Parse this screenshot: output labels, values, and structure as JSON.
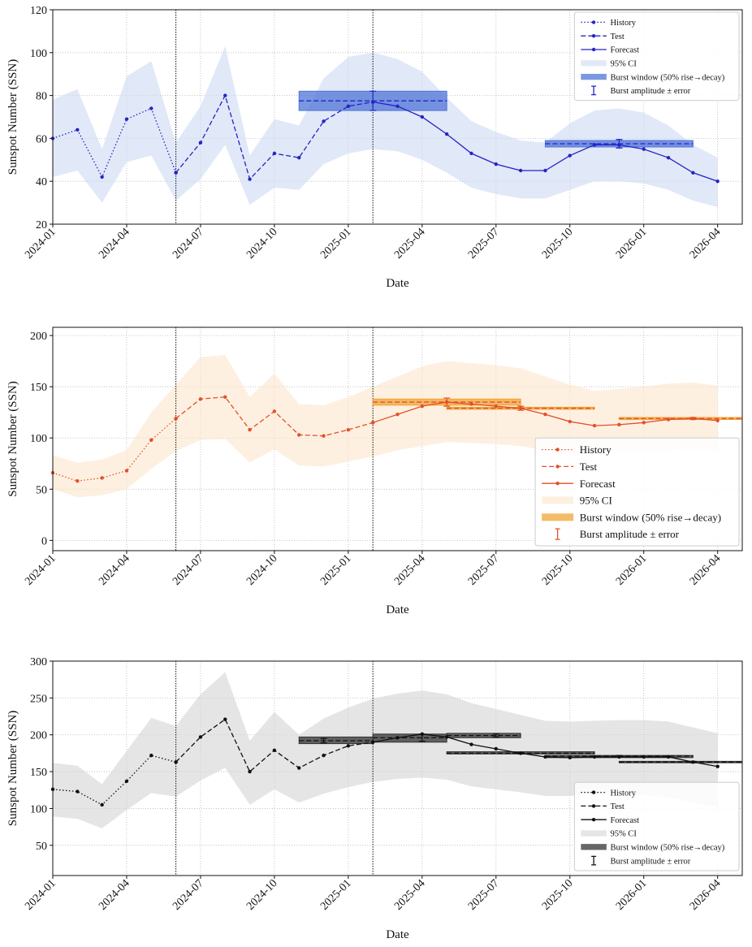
{
  "chart_data": [
    {
      "type": "line",
      "x": [
        "2024-01",
        "2024-02",
        "2024-03",
        "2024-04",
        "2024-05",
        "2024-06",
        "2024-07",
        "2024-08",
        "2024-09",
        "2024-10",
        "2024-11",
        "2024-12",
        "2025-01",
        "2025-02",
        "2025-03",
        "2025-04",
        "2025-05",
        "2025-06",
        "2025-07",
        "2025-08",
        "2025-09",
        "2025-10",
        "2025-11",
        "2025-12",
        "2026-01",
        "2026-02",
        "2026-03",
        "2026-04"
      ],
      "xlim": [
        "2024-01",
        "2026-05"
      ],
      "xticks": [
        "2024-01",
        "2024-04",
        "2024-07",
        "2024-10",
        "2025-01",
        "2025-04",
        "2025-07",
        "2025-10",
        "2026-01",
        "2026-04"
      ],
      "ylim": [
        20,
        120
      ],
      "yticks": [
        20,
        40,
        60,
        80,
        100,
        120
      ],
      "xlabel": "Date",
      "ylabel": "Sunspot Number (SSN)",
      "grid": true,
      "legend": "upper right",
      "vlines": [
        "2024-06",
        "2025-02"
      ],
      "series": [
        {
          "name": "History",
          "color": "#2424c4",
          "linestyle": "dotted",
          "values": [
            60,
            64,
            42,
            69,
            74,
            44,
            null,
            null,
            null,
            null,
            null,
            null,
            null,
            null,
            null,
            null,
            null,
            null,
            null,
            null,
            null,
            null,
            null,
            null,
            null,
            null,
            null,
            null
          ]
        },
        {
          "name": "Test",
          "color": "#2424c4",
          "linestyle": "dashed",
          "values": [
            null,
            null,
            null,
            null,
            null,
            44,
            58,
            80,
            41,
            53,
            51,
            68,
            75,
            77,
            null,
            null,
            null,
            null,
            null,
            null,
            null,
            null,
            null,
            null,
            null,
            null,
            null,
            null
          ]
        },
        {
          "name": "Forecast",
          "color": "#2424c4",
          "linestyle": "solid",
          "values": [
            null,
            null,
            null,
            null,
            null,
            null,
            null,
            null,
            null,
            null,
            null,
            null,
            null,
            77,
            75,
            70,
            62,
            53,
            48,
            45,
            45,
            52,
            57,
            57,
            55,
            51,
            44,
            40
          ]
        }
      ],
      "ci": {
        "name": "95% CI",
        "color": "#cdd8f3",
        "upper": [
          78,
          83,
          55,
          89,
          96,
          58,
          75,
          103,
          52,
          69,
          66,
          88,
          98,
          100,
          97,
          91,
          79,
          68,
          63,
          59,
          58,
          67,
          73,
          74,
          72,
          66,
          57,
          51
        ],
        "lower": [
          42,
          45,
          30,
          49,
          52,
          31,
          41,
          57,
          29,
          37,
          36,
          48,
          53,
          55,
          54,
          50,
          44,
          37,
          34,
          32,
          32,
          36,
          40,
          40,
          39,
          36,
          31,
          28
        ]
      },
      "bursts": {
        "window_label": "Burst window (50% rise→decay)",
        "amplitude_label": "Burst amplitude ± error",
        "color": "#4f74d8",
        "windows": [
          {
            "start": "2024-11",
            "end": "2025-05",
            "low": 73,
            "high": 82,
            "peak": "2025-02",
            "amplitude": 77.5,
            "error": 4.5
          },
          {
            "start": "2025-09",
            "end": "2026-03",
            "low": 56,
            "high": 59,
            "peak": "2025-12",
            "amplitude": 57.5,
            "error": 2
          }
        ]
      }
    },
    {
      "type": "line",
      "x": [
        "2024-01",
        "2024-02",
        "2024-03",
        "2024-04",
        "2024-05",
        "2024-06",
        "2024-07",
        "2024-08",
        "2024-09",
        "2024-10",
        "2024-11",
        "2024-12",
        "2025-01",
        "2025-02",
        "2025-03",
        "2025-04",
        "2025-05",
        "2025-06",
        "2025-07",
        "2025-08",
        "2025-09",
        "2025-10",
        "2025-11",
        "2025-12",
        "2026-01",
        "2026-02",
        "2026-03",
        "2026-04"
      ],
      "xlim": [
        "2024-01",
        "2026-05"
      ],
      "xticks": [
        "2024-01",
        "2024-04",
        "2024-07",
        "2024-10",
        "2025-01",
        "2025-04",
        "2025-07",
        "2025-10",
        "2026-01",
        "2026-04"
      ],
      "ylim": [
        -10,
        208
      ],
      "yticks": [
        0,
        50,
        100,
        150,
        200
      ],
      "xlabel": "Date",
      "ylabel": "Sunspot Number (SSN)",
      "grid": true,
      "legend": "lower right",
      "vlines": [
        "2024-06",
        "2025-02"
      ],
      "series": [
        {
          "name": "History",
          "color": "#e2502a",
          "linestyle": "dotted",
          "values": [
            66,
            58,
            61,
            68,
            98,
            119,
            null,
            null,
            null,
            null,
            null,
            null,
            null,
            null,
            null,
            null,
            null,
            null,
            null,
            null,
            null,
            null,
            null,
            null,
            null,
            null,
            null,
            null
          ]
        },
        {
          "name": "Test",
          "color": "#e2502a",
          "linestyle": "dashed",
          "values": [
            null,
            null,
            null,
            null,
            null,
            119,
            138,
            140,
            108,
            126,
            103,
            102,
            108,
            115,
            null,
            null,
            null,
            null,
            null,
            null,
            null,
            null,
            null,
            null,
            null,
            null,
            null,
            null
          ]
        },
        {
          "name": "Forecast",
          "color": "#e2502a",
          "linestyle": "solid",
          "values": [
            null,
            null,
            null,
            null,
            null,
            null,
            null,
            null,
            null,
            null,
            null,
            null,
            null,
            115,
            123,
            131,
            135,
            133,
            131,
            129,
            123,
            116,
            112,
            113,
            115,
            118,
            119,
            117
          ]
        }
      ],
      "ci": {
        "name": "95% CI",
        "color": "#fde6cc",
        "upper": [
          83,
          76,
          79,
          88,
          125,
          152,
          179,
          181,
          140,
          163,
          133,
          132,
          140,
          150,
          160,
          170,
          175,
          173,
          171,
          168,
          160,
          152,
          146,
          148,
          150,
          153,
          154,
          151
        ],
        "lower": [
          50,
          42,
          44,
          50,
          70,
          87,
          98,
          99,
          76,
          89,
          73,
          72,
          77,
          82,
          88,
          92,
          96,
          95,
          94,
          92,
          88,
          84,
          84,
          85,
          87,
          88,
          89,
          88
        ]
      },
      "bursts": {
        "window_label": "Burst window (50% rise→decay)",
        "amplitude_label": "Burst amplitude ± error",
        "color": "#f0a437",
        "windows": [
          {
            "start": "2025-02",
            "end": "2025-08",
            "low": 132,
            "high": 138,
            "peak": "2025-05",
            "amplitude": 135,
            "error": 4
          },
          {
            "start": "2025-05",
            "end": "2025-11",
            "low": 128,
            "high": 130,
            "peak": "2025-08",
            "amplitude": 129,
            "error": 2
          },
          {
            "start": "2025-12",
            "end": "2026-05",
            "low": 118,
            "high": 120,
            "peak": "2026-03",
            "amplitude": 119,
            "error": 1
          }
        ]
      }
    },
    {
      "type": "line",
      "x": [
        "2024-01",
        "2024-02",
        "2024-03",
        "2024-04",
        "2024-05",
        "2024-06",
        "2024-07",
        "2024-08",
        "2024-09",
        "2024-10",
        "2024-11",
        "2024-12",
        "2025-01",
        "2025-02",
        "2025-03",
        "2025-04",
        "2025-05",
        "2025-06",
        "2025-07",
        "2025-08",
        "2025-09",
        "2025-10",
        "2025-11",
        "2025-12",
        "2026-01",
        "2026-02",
        "2026-03",
        "2026-04"
      ],
      "xlim": [
        "2024-01",
        "2026-05"
      ],
      "xticks": [
        "2024-01",
        "2024-04",
        "2024-07",
        "2024-10",
        "2025-01",
        "2025-04",
        "2025-07",
        "2025-10",
        "2026-01",
        "2026-04"
      ],
      "ylim": [
        9,
        300
      ],
      "yticks": [
        50,
        100,
        150,
        200,
        250,
        300
      ],
      "xlabel": "Date",
      "ylabel": "Sunspot Number (SSN)",
      "grid": true,
      "legend": "lower right",
      "vlines": [
        "2024-06",
        "2025-02"
      ],
      "series": [
        {
          "name": "History",
          "color": "#111111",
          "linestyle": "dotted",
          "values": [
            126,
            123,
            105,
            137,
            172,
            163,
            null,
            null,
            null,
            null,
            null,
            null,
            null,
            null,
            null,
            null,
            null,
            null,
            null,
            null,
            null,
            null,
            null,
            null,
            null,
            null,
            null,
            null
          ]
        },
        {
          "name": "Test",
          "color": "#111111",
          "linestyle": "dashed",
          "values": [
            null,
            null,
            null,
            null,
            null,
            163,
            197,
            221,
            150,
            179,
            155,
            172,
            185,
            190,
            null,
            null,
            null,
            null,
            null,
            null,
            null,
            null,
            null,
            null,
            null,
            null,
            null,
            null
          ]
        },
        {
          "name": "Forecast",
          "color": "#111111",
          "linestyle": "solid",
          "values": [
            null,
            null,
            null,
            null,
            null,
            null,
            null,
            null,
            null,
            null,
            null,
            null,
            null,
            190,
            196,
            201,
            197,
            187,
            181,
            175,
            170,
            169,
            170,
            170,
            170,
            170,
            163,
            157
          ]
        }
      ],
      "ci": {
        "name": "95% CI",
        "color": "#d3d3d3",
        "upper": [
          162,
          158,
          133,
          178,
          223,
          212,
          255,
          285,
          192,
          231,
          200,
          222,
          237,
          249,
          256,
          260,
          255,
          243,
          235,
          227,
          219,
          218,
          219,
          220,
          220,
          218,
          210,
          202
        ],
        "lower": [
          89,
          86,
          73,
          98,
          121,
          116,
          138,
          155,
          105,
          126,
          108,
          120,
          129,
          136,
          140,
          142,
          139,
          130,
          126,
          122,
          117,
          117,
          120,
          120,
          118,
          115,
          108,
          102
        ]
      },
      "bursts": {
        "window_label": "Burst window (50% rise→decay)",
        "amplitude_label": "Burst amplitude ± error",
        "color": "#333333",
        "windows": [
          {
            "start": "2024-11",
            "end": "2025-02",
            "low": 188,
            "high": 197,
            "peak": "2024-12",
            "amplitude": 192,
            "error": 3
          },
          {
            "start": "2025-02",
            "end": "2025-05",
            "low": 190,
            "high": 201,
            "peak": "2025-04",
            "amplitude": 196,
            "error": 5
          },
          {
            "start": "2025-05",
            "end": "2025-08",
            "low": 196,
            "high": 202,
            "peak": "2025-07",
            "amplitude": 199,
            "error": 2
          },
          {
            "start": "2025-05",
            "end": "2025-11",
            "low": 174,
            "high": 177,
            "peak": "2025-08",
            "amplitude": 175,
            "error": 1
          },
          {
            "start": "2025-09",
            "end": "2026-03",
            "low": 169,
            "high": 172,
            "peak": "2025-12",
            "amplitude": 171,
            "error": 1
          },
          {
            "start": "2025-12",
            "end": "2026-05",
            "low": 162,
            "high": 164,
            "peak": "2026-03",
            "amplitude": 163,
            "error": 1
          }
        ]
      }
    }
  ]
}
